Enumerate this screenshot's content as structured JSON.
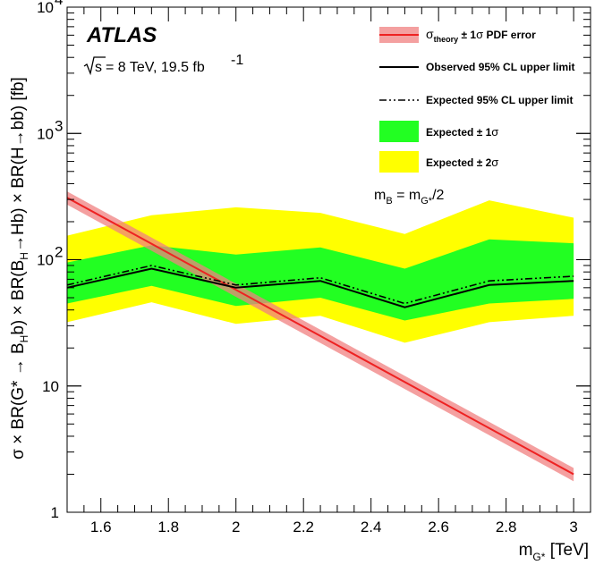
{
  "chart_data": {
    "type": "line",
    "experiment": "ATLAS",
    "energy_lumi": "= 8 TeV, 19.5 fb",
    "energy_sqrt_s": "s",
    "lumi_sup": "-1",
    "mass_relation": "m_B = m_G*/2",
    "xlabel": "m_G* [TeV]",
    "ylabel": "σ × BR(G* → B_H b) × BR(B_H → Hb) × BR(H → bb) [fb]",
    "ylog": true,
    "xlim": [
      1.5,
      3.05
    ],
    "ylim": [
      1,
      10000
    ],
    "x_ticks": [
      {
        "v": 1.6,
        "label": "1.6"
      },
      {
        "v": 1.8,
        "label": "1.8"
      },
      {
        "v": 2.0,
        "label": "2"
      },
      {
        "v": 2.2,
        "label": "2.2"
      },
      {
        "v": 2.4,
        "label": "2.4"
      },
      {
        "v": 2.6,
        "label": "2.6"
      },
      {
        "v": 2.8,
        "label": "2.8"
      },
      {
        "v": 3.0,
        "label": "3"
      }
    ],
    "y_ticks": [
      {
        "v": 1,
        "label": "1"
      },
      {
        "v": 10,
        "label": "10"
      },
      {
        "v": 100,
        "label": "10",
        "sup": "2"
      },
      {
        "v": 1000,
        "label": "10",
        "sup": "3"
      },
      {
        "v": 10000,
        "label": "10",
        "sup": "4"
      }
    ],
    "x": [
      1.5,
      1.75,
      2.0,
      2.25,
      2.5,
      2.75,
      3.0
    ],
    "observed": [
      60,
      85,
      60,
      68,
      42,
      63,
      68
    ],
    "expected": [
      63,
      90,
      63,
      72,
      45,
      68,
      74
    ],
    "band_1sigma_low": [
      45,
      62,
      43,
      50,
      33,
      45,
      49
    ],
    "band_1sigma_high": [
      95,
      130,
      110,
      125,
      85,
      145,
      135
    ],
    "band_2sigma_low": [
      32,
      46,
      31,
      36,
      22,
      32,
      36
    ],
    "band_2sigma_high": [
      155,
      225,
      260,
      235,
      160,
      295,
      215
    ],
    "theory_x": [
      1.5,
      3.0
    ],
    "theory": [
      310,
      2.0
    ],
    "theory_rel_err": 0.12,
    "legend": [
      {
        "id": "theory",
        "label": "σ_theory ± 1σ PDF error"
      },
      {
        "id": "observed",
        "label": "Observed 95% CL upper limit"
      },
      {
        "id": "expected",
        "label": "Expected 95% CL upper limit"
      },
      {
        "id": "band1",
        "label": "Expected ± 1σ"
      },
      {
        "id": "band2",
        "label": "Expected ± 2σ"
      }
    ],
    "colors": {
      "band1": "#22ff22",
      "band2": "#ffff00",
      "theory": "#ee2222",
      "theory_band": "#f08080",
      "observed": "#000000",
      "expected": "#000000"
    }
  }
}
